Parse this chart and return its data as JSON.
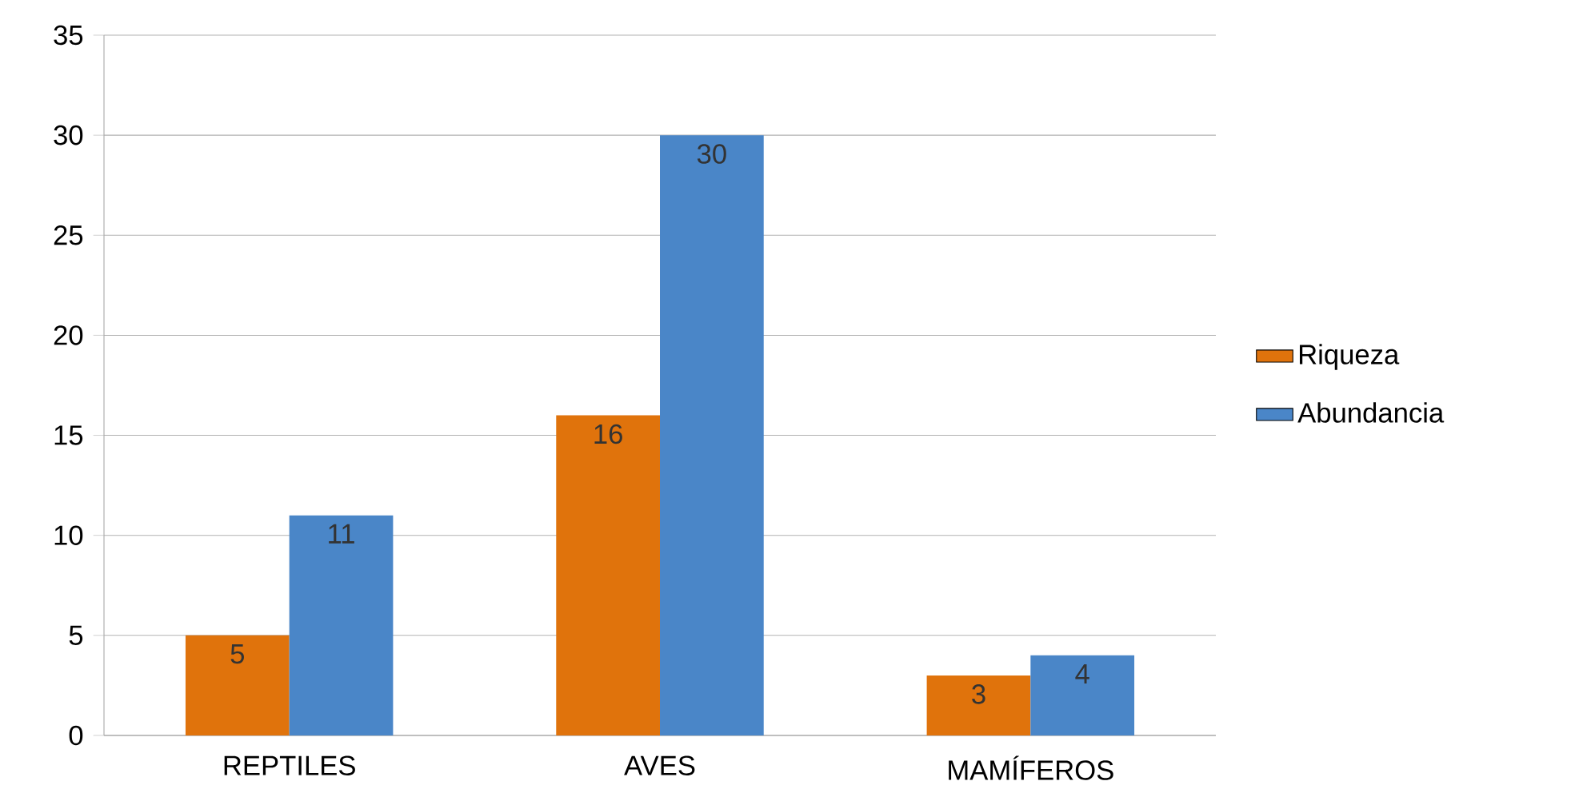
{
  "chart_data": {
    "type": "bar",
    "categories": [
      "REPTILES",
      "AVES",
      "MAMÍFEROS"
    ],
    "series": [
      {
        "name": "Riqueza",
        "color": "#e0730c",
        "values": [
          5,
          16,
          3
        ]
      },
      {
        "name": "Abundancia",
        "color": "#4a86c8",
        "values": [
          11,
          30,
          4
        ]
      }
    ],
    "ylim": [
      0,
      35
    ],
    "yticks": [
      0,
      5,
      10,
      15,
      20,
      25,
      30,
      35
    ],
    "grid": "y",
    "legend": "right",
    "data_labels": true
  }
}
